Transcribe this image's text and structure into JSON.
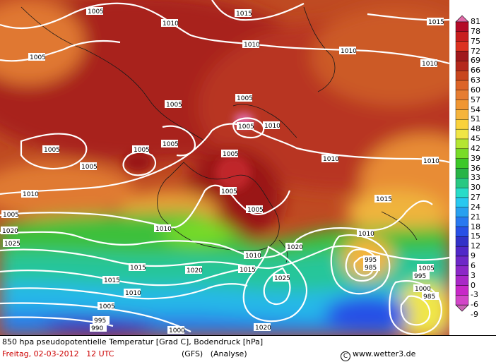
{
  "footer": {
    "title": "850 hpa pseudopotentielle Temperatur [Grad C], Bodendruck [hPa]",
    "date": "Freitag, 02-03-2012",
    "time": "12 UTC",
    "model": "(GFS)",
    "analysis": "(Analyse)",
    "credit": "www.wetter3.de"
  },
  "colorbar": {
    "unit": "Grad C",
    "levels": [
      {
        "label": "81",
        "color": "#e06aa8"
      },
      {
        "label": "78",
        "color": "#b40a28"
      },
      {
        "label": "75",
        "color": "#c81e1e"
      },
      {
        "label": "72",
        "color": "#dc3220"
      },
      {
        "label": "69",
        "color": "#a0181c"
      },
      {
        "label": "66",
        "color": "#b4281c"
      },
      {
        "label": "63",
        "color": "#c8461e"
      },
      {
        "label": "60",
        "color": "#dc6428"
      },
      {
        "label": "57",
        "color": "#e67d32"
      },
      {
        "label": "54",
        "color": "#f09632"
      },
      {
        "label": "51",
        "color": "#f5b43c"
      },
      {
        "label": "48",
        "color": "#fad23c"
      },
      {
        "label": "45",
        "color": "#f0e646"
      },
      {
        "label": "42",
        "color": "#b4e632"
      },
      {
        "label": "39",
        "color": "#78dc28"
      },
      {
        "label": "36",
        "color": "#3cc828"
      },
      {
        "label": "33",
        "color": "#28b446"
      },
      {
        "label": "30",
        "color": "#28c882"
      },
      {
        "label": "27",
        "color": "#28dcc8"
      },
      {
        "label": "24",
        "color": "#28c8f0"
      },
      {
        "label": "21",
        "color": "#28a0f0"
      },
      {
        "label": "18",
        "color": "#2878f0"
      },
      {
        "label": "15",
        "color": "#2850e6"
      },
      {
        "label": "12",
        "color": "#3232c8"
      },
      {
        "label": "9",
        "color": "#5028c8"
      },
      {
        "label": "6",
        "color": "#6e28c8"
      },
      {
        "label": "3",
        "color": "#8c28c8"
      },
      {
        "label": "0",
        "color": "#aa28c8"
      },
      {
        "label": "-3",
        "color": "#c828c8"
      },
      {
        "label": "-6",
        "color": "#d246c8"
      },
      {
        "label": "-9",
        "color": "#c864b4"
      }
    ]
  },
  "isobar_labels": [
    "1005",
    "1015",
    "1010",
    "1005",
    "1010",
    "1010",
    "1015",
    "1005",
    "1005",
    "1005",
    "1010",
    "1005",
    "1005",
    "1005",
    "1010",
    "1005",
    "1005",
    "1005",
    "1010",
    "1010",
    "1005",
    "1010",
    "1010",
    "1015",
    "1020",
    "1025",
    "1010",
    "1005",
    "1010",
    "1020",
    "1015",
    "1015",
    "1020",
    "1015",
    "1025",
    "1010",
    "995",
    "995",
    "985",
    "1005",
    "1000",
    "985",
    "1005",
    "995",
    "990",
    "1000",
    "1020"
  ]
}
